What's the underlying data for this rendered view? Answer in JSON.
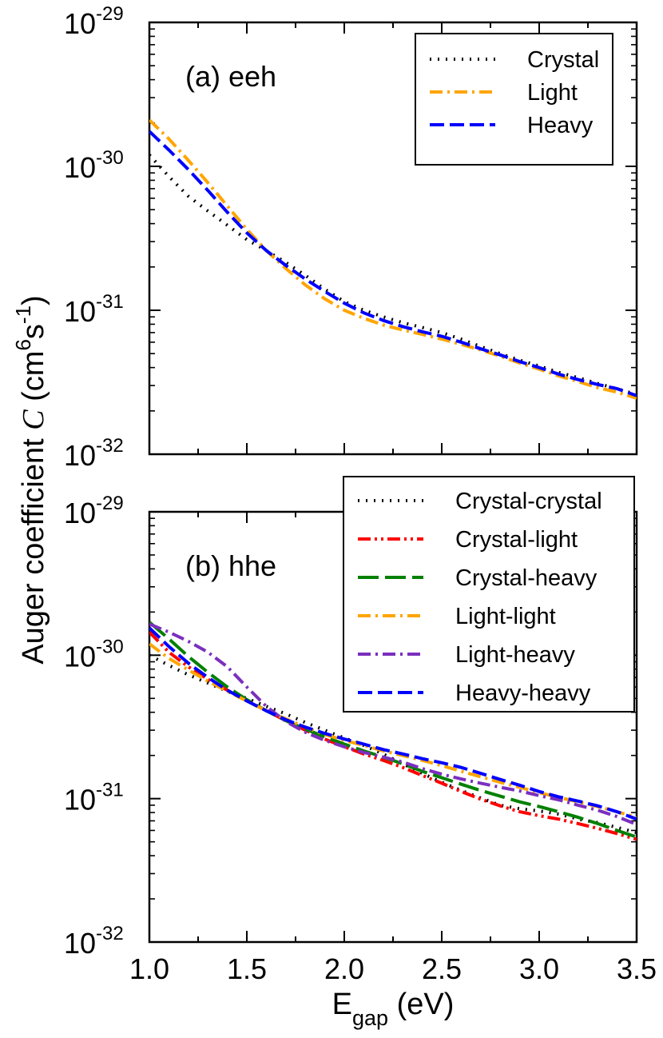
{
  "ylabel": {
    "base": "Auger coefficient",
    "symbol": "C",
    "units_open": "(cm",
    "units_exp1": "6",
    "units_mid": "s",
    "units_exp2": "-1",
    "units_close": ")"
  },
  "xlabel": {
    "base": "E",
    "sub": "gap",
    "units": "(eV)"
  },
  "chart_data": [
    {
      "type": "line",
      "title": "(a) eeh",
      "yscale": "log",
      "xlim": [
        1.0,
        3.5
      ],
      "ylim_exponents": [
        -32,
        -29
      ],
      "ytick_labels": [
        {
          "base": "10",
          "exp": "-29"
        },
        {
          "base": "10",
          "exp": "-30"
        },
        {
          "base": "10",
          "exp": "-31"
        },
        {
          "base": "10",
          "exp": "-32"
        }
      ],
      "legend_position": "top-right",
      "series": [
        {
          "name": "Crystal",
          "color": "#000000",
          "style": "dotted",
          "x": [
            1.0,
            1.1,
            1.2,
            1.3,
            1.4,
            1.5,
            1.6,
            1.7,
            1.8,
            1.9,
            2.0,
            2.1,
            2.2,
            2.3,
            2.4,
            2.5,
            2.6,
            2.7,
            2.8,
            2.9,
            3.0,
            3.1,
            3.2,
            3.3,
            3.4,
            3.5
          ],
          "y": [
            1.2e-30,
            8.5e-31,
            6.2e-31,
            4.9e-31,
            3.9e-31,
            3.1e-31,
            2.6e-31,
            2.15e-31,
            1.75e-31,
            1.4e-31,
            1.15e-31,
            1e-31,
            9e-32,
            8.2e-32,
            7.6e-32,
            7e-32,
            6.3e-32,
            5.6e-32,
            5e-32,
            4.5e-32,
            4.1e-32,
            3.7e-32,
            3.4e-32,
            3.1e-32,
            2.85e-32,
            2.6e-32
          ]
        },
        {
          "name": "Light",
          "color": "#ffa500",
          "style": "dashdot",
          "x": [
            1.0,
            1.1,
            1.2,
            1.3,
            1.4,
            1.5,
            1.6,
            1.7,
            1.8,
            1.9,
            2.0,
            2.1,
            2.2,
            2.3,
            2.4,
            2.5,
            2.6,
            2.7,
            2.8,
            2.9,
            3.0,
            3.1,
            3.2,
            3.3,
            3.4,
            3.5
          ],
          "y": [
            2.1e-30,
            1.55e-30,
            1.1e-30,
            7.7e-31,
            5.3e-31,
            3.65e-31,
            2.6e-31,
            1.95e-31,
            1.5e-31,
            1.2e-31,
            1e-31,
            8.8e-32,
            7.9e-32,
            7.3e-32,
            6.8e-32,
            6.3e-32,
            5.8e-32,
            5.3e-32,
            4.8e-32,
            4.3e-32,
            3.9e-32,
            3.5e-32,
            3.2e-32,
            2.9e-32,
            2.7e-32,
            2.45e-32
          ]
        },
        {
          "name": "Heavy",
          "color": "#0000ff",
          "style": "dashed",
          "x": [
            1.0,
            1.1,
            1.2,
            1.3,
            1.4,
            1.5,
            1.6,
            1.7,
            1.8,
            1.9,
            2.0,
            2.1,
            2.2,
            2.3,
            2.4,
            2.5,
            2.6,
            2.7,
            2.8,
            2.9,
            3.0,
            3.1,
            3.2,
            3.3,
            3.4,
            3.5
          ],
          "y": [
            1.75e-30,
            1.3e-30,
            9.5e-31,
            6.8e-31,
            4.8e-31,
            3.45e-31,
            2.6e-31,
            2.05e-31,
            1.65e-31,
            1.35e-31,
            1.12e-31,
            9.6e-32,
            8.5e-32,
            7.7e-32,
            7.1e-32,
            6.6e-32,
            6e-32,
            5.4e-32,
            4.9e-32,
            4.4e-32,
            4e-32,
            3.6e-32,
            3.3e-32,
            3.05e-32,
            2.85e-32,
            2.55e-32
          ]
        }
      ]
    },
    {
      "type": "line",
      "title": "(b) hhe",
      "yscale": "log",
      "xlim": [
        1.0,
        3.5
      ],
      "ylim_exponents": [
        -32,
        -29
      ],
      "ytick_labels": [
        {
          "base": "10",
          "exp": "-29"
        },
        {
          "base": "10",
          "exp": "-30"
        },
        {
          "base": "10",
          "exp": "-31"
        },
        {
          "base": "10",
          "exp": "-32"
        }
      ],
      "xtick_labels": [
        "1.0",
        "1.5",
        "2.0",
        "2.5",
        "3.0",
        "3.5"
      ],
      "legend_position": "top-right",
      "series": [
        {
          "name": "Crystal-crystal",
          "color": "#000000",
          "style": "dotted",
          "x": [
            1.0,
            1.1,
            1.2,
            1.3,
            1.4,
            1.5,
            1.6,
            1.7,
            1.8,
            1.9,
            2.0,
            2.1,
            2.2,
            2.3,
            2.4,
            2.5,
            2.6,
            2.7,
            2.8,
            2.9,
            3.0,
            3.1,
            3.2,
            3.3,
            3.4,
            3.5
          ],
          "y": [
            1e-30,
            8.5e-31,
            7.3e-31,
            6.4e-31,
            5.6e-31,
            5e-31,
            4.4e-31,
            3.9e-31,
            3.4e-31,
            3e-31,
            2.65e-31,
            2.35e-31,
            2.05e-31,
            1.75e-31,
            1.5e-31,
            1.3e-31,
            1.14e-31,
            1.01e-31,
            9e-32,
            8.5e-32,
            8.2e-32,
            7.8e-32,
            7.2e-32,
            6.8e-32,
            6.3e-32,
            5.8e-32
          ]
        },
        {
          "name": "Crystal-light",
          "color": "#ff0000",
          "style": "dashdotdot",
          "x": [
            1.0,
            1.1,
            1.2,
            1.3,
            1.4,
            1.5,
            1.6,
            1.7,
            1.8,
            1.9,
            2.0,
            2.1,
            2.2,
            2.3,
            2.4,
            2.5,
            2.6,
            2.7,
            2.8,
            2.9,
            3.0,
            3.1,
            3.2,
            3.3,
            3.4,
            3.5
          ],
          "y": [
            1.45e-30,
            1.05e-30,
            8.3e-31,
            6.8e-31,
            5.7e-31,
            4.8e-31,
            4.1e-31,
            3.5e-31,
            3e-31,
            2.6e-31,
            2.3e-31,
            2.05e-31,
            1.85e-31,
            1.65e-31,
            1.45e-31,
            1.28e-31,
            1.12e-31,
            9.9e-32,
            8.9e-32,
            8.1e-32,
            7.6e-32,
            7.2e-32,
            6.7e-32,
            6.2e-32,
            5.7e-32,
            5.2e-32
          ]
        },
        {
          "name": "Crystal-heavy",
          "color": "#008000",
          "style": "longdash",
          "x": [
            1.0,
            1.1,
            1.2,
            1.3,
            1.4,
            1.5,
            1.6,
            1.7,
            1.8,
            1.9,
            2.0,
            2.1,
            2.2,
            2.3,
            2.4,
            2.5,
            2.6,
            2.7,
            2.8,
            2.9,
            3.0,
            3.1,
            3.2,
            3.3,
            3.4,
            3.5
          ],
          "y": [
            1.7e-30,
            1.3e-30,
            9.8e-31,
            7.6e-31,
            6e-31,
            4.9e-31,
            4.1e-31,
            3.5e-31,
            3.05e-31,
            2.7e-31,
            2.4e-31,
            2.15e-31,
            1.95e-31,
            1.75e-31,
            1.55e-31,
            1.4e-31,
            1.26e-31,
            1.14e-31,
            1.04e-31,
            9.5e-32,
            8.8e-32,
            8.1e-32,
            7.4e-32,
            6.7e-32,
            6e-32,
            5.4e-32
          ]
        },
        {
          "name": "Light-light",
          "color": "#ffa500",
          "style": "dashdot",
          "x": [
            1.0,
            1.1,
            1.2,
            1.3,
            1.4,
            1.5,
            1.6,
            1.7,
            1.8,
            1.9,
            2.0,
            2.1,
            2.2,
            2.3,
            2.4,
            2.5,
            2.6,
            2.7,
            2.8,
            2.9,
            3.0,
            3.1,
            3.2,
            3.3,
            3.4,
            3.5
          ],
          "y": [
            1.2e-30,
            9.5e-31,
            7.9e-31,
            6.6e-31,
            5.6e-31,
            4.8e-31,
            4.1e-31,
            3.6e-31,
            3.15e-31,
            2.8e-31,
            2.55e-31,
            2.35e-31,
            2.15e-31,
            2e-31,
            1.85e-31,
            1.7e-31,
            1.55e-31,
            1.42e-31,
            1.3e-31,
            1.2e-31,
            1.1e-31,
            1.02e-31,
            9.5e-32,
            8.8e-32,
            8.1e-32,
            7.4e-32
          ]
        },
        {
          "name": "Light-heavy",
          "color": "#7b2fbe",
          "style": "dashdot",
          "x": [
            1.0,
            1.1,
            1.2,
            1.3,
            1.4,
            1.5,
            1.6,
            1.7,
            1.8,
            1.9,
            2.0,
            2.1,
            2.2,
            2.3,
            2.4,
            2.5,
            2.6,
            2.7,
            2.8,
            2.9,
            3.0,
            3.1,
            3.2,
            3.3,
            3.4,
            3.5
          ],
          "y": [
            1.65e-30,
            1.45e-30,
            1.25e-30,
            1.05e-30,
            8.3e-31,
            6e-31,
            4.4e-31,
            3.45e-31,
            2.9e-31,
            2.55e-31,
            2.3e-31,
            2.1e-31,
            1.95e-31,
            1.8e-31,
            1.62e-31,
            1.48e-31,
            1.37e-31,
            1.28e-31,
            1.2e-31,
            1.13e-31,
            1.05e-31,
            9.8e-32,
            9e-32,
            8.3e-32,
            7.5e-32,
            6.6e-32
          ]
        },
        {
          "name": "Heavy-heavy",
          "color": "#0000ff",
          "style": "dashed",
          "x": [
            1.0,
            1.1,
            1.2,
            1.3,
            1.4,
            1.5,
            1.6,
            1.7,
            1.8,
            1.9,
            2.0,
            2.1,
            2.2,
            2.3,
            2.4,
            2.5,
            2.6,
            2.7,
            2.8,
            2.9,
            3.0,
            3.1,
            3.2,
            3.3,
            3.4,
            3.5
          ],
          "y": [
            1.55e-30,
            1.15e-30,
            8.8e-31,
            7e-31,
            5.7e-31,
            4.8e-31,
            4.1e-31,
            3.55e-31,
            3.15e-31,
            2.85e-31,
            2.6e-31,
            2.4e-31,
            2.2e-31,
            2.05e-31,
            1.9e-31,
            1.78e-31,
            1.65e-31,
            1.5e-31,
            1.36e-31,
            1.24e-31,
            1.12e-31,
            1.03e-31,
            9.6e-32,
            8.9e-32,
            8.1e-32,
            7.2e-32
          ]
        }
      ]
    }
  ]
}
